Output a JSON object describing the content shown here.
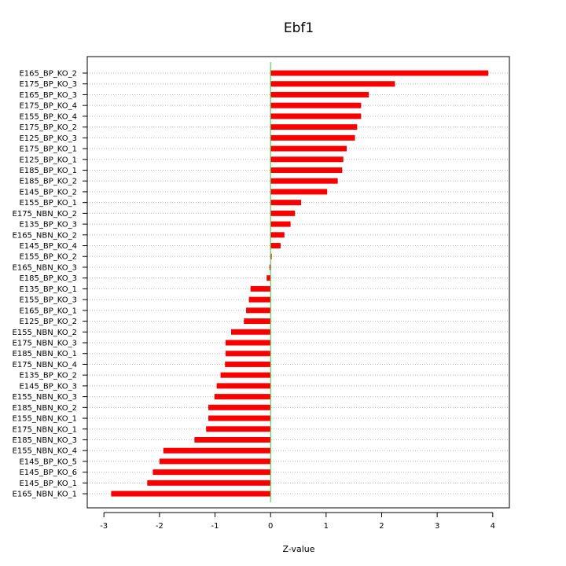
{
  "chart_data": {
    "type": "bar",
    "orientation": "horizontal",
    "title": "Ebf1",
    "xlabel": "Z-value",
    "ylabel": "",
    "xlim": [
      -3.3,
      4.3
    ],
    "x_ticks": [
      -3,
      -2,
      -1,
      0,
      1,
      2,
      3,
      4
    ],
    "grid": "horizontal dotted",
    "colors": {
      "bar": "#ff0000",
      "bar_dark": "#cc0000",
      "zero_line": "#33cc33",
      "grid": "#bbbbbb"
    },
    "categories": [
      "E165_BP_KO_2",
      "E175_BP_KO_3",
      "E165_BP_KO_3",
      "E175_BP_KO_4",
      "E155_BP_KO_4",
      "E175_BP_KO_2",
      "E125_BP_KO_3",
      "E175_BP_KO_1",
      "E125_BP_KO_1",
      "E185_BP_KO_1",
      "E185_BP_KO_2",
      "E145_BP_KO_2",
      "E155_BP_KO_1",
      "E175_NBN_KO_2",
      "E135_BP_KO_3",
      "E165_NBN_KO_2",
      "E145_BP_KO_4",
      "E155_BP_KO_2",
      "E165_NBN_KO_3",
      "E185_BP_KO_3",
      "E135_BP_KO_1",
      "E155_BP_KO_3",
      "E165_BP_KO_1",
      "E125_BP_KO_2",
      "E155_NBN_KO_2",
      "E175_NBN_KO_3",
      "E185_NBN_KO_1",
      "E175_NBN_KO_4",
      "E135_BP_KO_2",
      "E145_BP_KO_3",
      "E155_NBN_KO_3",
      "E185_NBN_KO_2",
      "E155_NBN_KO_1",
      "E175_NBN_KO_1",
      "E185_NBN_KO_3",
      "E155_NBN_KO_4",
      "E145_BP_KO_5",
      "E145_BP_KO_6",
      "E145_BP_KO_1",
      "E165_NBN_KO_1"
    ],
    "values": [
      3.92,
      2.24,
      1.77,
      1.63,
      1.63,
      1.56,
      1.52,
      1.37,
      1.31,
      1.29,
      1.21,
      1.02,
      0.55,
      0.44,
      0.36,
      0.25,
      0.18,
      0.02,
      -0.02,
      -0.07,
      -0.36,
      -0.39,
      -0.44,
      -0.48,
      -0.71,
      -0.81,
      -0.81,
      -0.82,
      -0.9,
      -0.97,
      -1.01,
      -1.12,
      -1.12,
      -1.16,
      -1.37,
      -1.93,
      -2.0,
      -2.12,
      -2.22,
      -2.87
    ]
  }
}
